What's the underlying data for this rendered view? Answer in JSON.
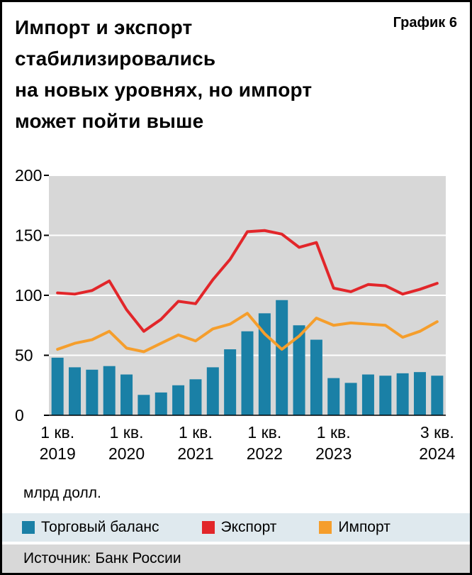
{
  "header": {
    "title_lines": [
      "Импорт и экспорт стабилизировались",
      "на новых уровнях, но импорт",
      "может пойти выше"
    ],
    "chart_label": "График 6"
  },
  "colors": {
    "plot_background": "#d7d7d7",
    "grid": "#ffffff",
    "axis": "#000000",
    "bar": "#1a80a6",
    "export_line": "#e2262a",
    "import_line": "#f59e2c"
  },
  "chart_data": {
    "type": "bar",
    "title": "Импорт и экспорт стабилизировались на новых уровнях, но импорт может пойти выше",
    "unit_label": "млрд долл.",
    "xlabel": "",
    "ylabel": "млрд долл.",
    "ylim": [
      0,
      200
    ],
    "yticks": [
      0,
      50,
      100,
      150,
      200
    ],
    "grid": true,
    "legend_position": "bottom",
    "categories": [
      "1 кв. 2019",
      "2 кв. 2019",
      "3 кв. 2019",
      "4 кв. 2019",
      "1 кв. 2020",
      "2 кв. 2020",
      "3 кв. 2020",
      "4 кв. 2020",
      "1 кв. 2021",
      "2 кв. 2021",
      "3 кв. 2021",
      "4 кв. 2021",
      "1 кв. 2022",
      "2 кв. 2022",
      "3 кв. 2022",
      "4 кв. 2022",
      "1 кв. 2023",
      "2 кв. 2023",
      "3 кв. 2023",
      "4 кв. 2023",
      "1 кв. 2024",
      "2 кв. 2024",
      "3 кв. 2024"
    ],
    "series": [
      {
        "name": "Торговый баланс",
        "type": "bar",
        "color": "#1a80a6",
        "values": [
          48,
          40,
          38,
          41,
          34,
          17,
          19,
          25,
          30,
          40,
          55,
          70,
          85,
          96,
          75,
          63,
          31,
          27,
          34,
          33,
          35,
          36,
          33
        ]
      },
      {
        "name": "Экспорт",
        "type": "line",
        "color": "#e2262a",
        "values": [
          102,
          101,
          104,
          112,
          88,
          70,
          80,
          95,
          93,
          113,
          130,
          153,
          154,
          151,
          140,
          144,
          106,
          103,
          109,
          108,
          101,
          105,
          110
        ]
      },
      {
        "name": "Импорт",
        "type": "line",
        "color": "#f59e2c",
        "values": [
          55,
          60,
          63,
          70,
          56,
          53,
          60,
          67,
          62,
          72,
          76,
          85,
          68,
          55,
          66,
          81,
          75,
          77,
          76,
          75,
          65,
          70,
          78
        ]
      }
    ],
    "x_ticks": [
      {
        "index": 0,
        "line1": "1 кв.",
        "line2": "2019"
      },
      {
        "index": 4,
        "line1": "1 кв.",
        "line2": "2020"
      },
      {
        "index": 8,
        "line1": "1 кв.",
        "line2": "2021"
      },
      {
        "index": 12,
        "line1": "1 кв.",
        "line2": "2022"
      },
      {
        "index": 16,
        "line1": "1 кв.",
        "line2": "2023"
      },
      {
        "index": 22,
        "line1": "3 кв.",
        "line2": "2024"
      }
    ]
  },
  "legend": {
    "items": [
      {
        "label": "Торговый баланс",
        "color": "#1a80a6"
      },
      {
        "label": "Экспорт",
        "color": "#e2262a"
      },
      {
        "label": "Импорт",
        "color": "#f59e2c"
      }
    ]
  },
  "footer": {
    "source": "Источник: Банк России"
  }
}
